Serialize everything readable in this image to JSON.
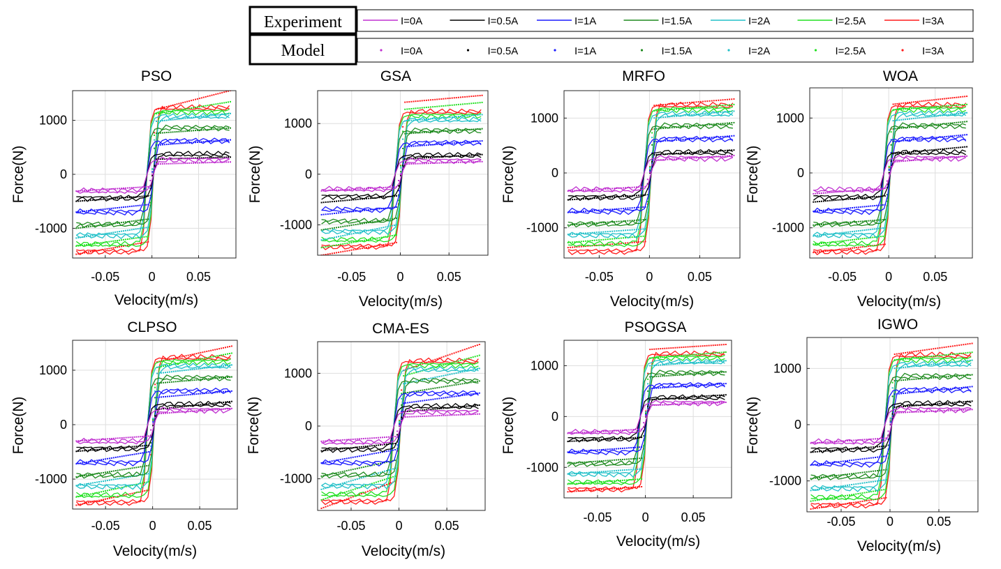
{
  "legend": {
    "experiment_label": "Experiment",
    "model_label": "Model",
    "entries": [
      "I=0A",
      "I=0.5A",
      "I=1A",
      "I=1.5A",
      "I=2A",
      "I=2.5A",
      "I=3A"
    ],
    "colors": [
      "#c030d0",
      "#000000",
      "#1a1aff",
      "#1f8a1f",
      "#22c0c8",
      "#22e022",
      "#ff1a1a"
    ]
  },
  "chart_data": [
    {
      "type": "line",
      "title": "PSO",
      "xlabel": "Velocity(m/s)",
      "ylabel": "Force(N)",
      "xlim": [
        -0.085,
        0.09
      ],
      "ylim": [
        -1550,
        1550
      ],
      "xticks": [
        -0.05,
        0,
        0.05
      ],
      "xtick_labels": [
        "-0.05",
        "0",
        "0.05"
      ],
      "yticks": [
        -1000,
        0,
        1000
      ],
      "ytick_labels": [
        "-1000",
        "0",
        "1000"
      ],
      "grid": true,
      "series_names": [
        "I=0A",
        "I=0.5A",
        "I=1A",
        "I=1.5A",
        "I=2A",
        "I=2.5A",
        "I=3A"
      ],
      "experiment_plateau_upper": [
        270,
        370,
        620,
        860,
        1070,
        1160,
        1230
      ],
      "experiment_plateau_lower": [
        -310,
        -440,
        -700,
        -930,
        -1130,
        -1300,
        -1430
      ],
      "model_upper_start": [
        190,
        280,
        540,
        760,
        980,
        1120,
        1200
      ],
      "model_upper_end": [
        230,
        320,
        640,
        860,
        1130,
        1350,
        1560
      ],
      "model_lower_start": [
        -310,
        -500,
        -700,
        -1000,
        -1180,
        -1330,
        -1480
      ],
      "model_lower_end": [
        -230,
        -400,
        -560,
        -830,
        -980,
        -1150,
        -1250
      ]
    },
    {
      "type": "line",
      "title": "GSA",
      "xlabel": "Velocity(m/s)",
      "ylabel": "Force(N)",
      "xlim": [
        -0.085,
        0.09
      ],
      "ylim": [
        -1600,
        1650
      ],
      "xticks": [
        -0.05,
        0,
        0.05
      ],
      "xtick_labels": [
        "-0.05",
        "0",
        "0.05"
      ],
      "yticks": [
        -1000,
        0,
        1000
      ],
      "ytick_labels": [
        "-1000",
        "0",
        "1000"
      ],
      "grid": true,
      "series_names": [
        "I=0A",
        "I=0.5A",
        "I=1A",
        "I=1.5A",
        "I=2A",
        "I=2.5A",
        "I=3A"
      ],
      "experiment_plateau_upper": [
        270,
        370,
        620,
        860,
        1070,
        1160,
        1230
      ],
      "experiment_plateau_lower": [
        -300,
        -440,
        -700,
        -930,
        -1130,
        -1300,
        -1430
      ],
      "model_upper_start": [
        200,
        300,
        540,
        800,
        1050,
        1280,
        1420
      ],
      "model_upper_end": [
        250,
        390,
        660,
        900,
        1180,
        1420,
        1560
      ],
      "model_lower_start": [
        -330,
        -560,
        -800,
        -1100,
        -1300,
        -1450,
        -1600
      ],
      "model_lower_end": [
        -250,
        -430,
        -650,
        -870,
        -1000,
        -1200,
        -1350
      ]
    },
    {
      "type": "line",
      "title": "MRFO",
      "xlabel": "Velocity(m/s)",
      "ylabel": "Force(N)",
      "xlim": [
        -0.085,
        0.09
      ],
      "ylim": [
        -1550,
        1500
      ],
      "xticks": [
        -0.05,
        0,
        0.05
      ],
      "xtick_labels": [
        "-0.05",
        "0",
        "0.05"
      ],
      "yticks": [
        -1000,
        0,
        1000
      ],
      "ytick_labels": [
        "-1000",
        "0",
        "1000"
      ],
      "grid": true,
      "series_names": [
        "I=0A",
        "I=0.5A",
        "I=1A",
        "I=1.5A",
        "I=2A",
        "I=2.5A",
        "I=3A"
      ],
      "experiment_plateau_upper": [
        270,
        370,
        620,
        860,
        1070,
        1160,
        1230
      ],
      "experiment_plateau_lower": [
        -310,
        -440,
        -700,
        -930,
        -1130,
        -1300,
        -1430
      ],
      "model_upper_start": [
        230,
        330,
        570,
        800,
        1000,
        1130,
        1230
      ],
      "model_upper_end": [
        320,
        420,
        680,
        920,
        1130,
        1250,
        1350
      ],
      "model_lower_start": [
        -330,
        -490,
        -720,
        -950,
        -1120,
        -1270,
        -1360
      ],
      "model_lower_end": [
        -250,
        -400,
        -620,
        -850,
        -1020,
        -1150,
        -1250
      ]
    },
    {
      "type": "line",
      "title": "WOA",
      "xlabel": "Velocity(m/s)",
      "ylabel": "Force(N)",
      "xlim": [
        -0.085,
        0.09
      ],
      "ylim": [
        -1550,
        1550
      ],
      "xticks": [
        -0.05,
        0,
        0.05
      ],
      "xtick_labels": [
        "-0.05",
        "0",
        "0.05"
      ],
      "yticks": [
        -1000,
        0,
        1000
      ],
      "ytick_labels": [
        "-1000",
        "0",
        "1000"
      ],
      "grid": true,
      "series_names": [
        "I=0A",
        "I=0.5A",
        "I=1A",
        "I=1.5A",
        "I=2A",
        "I=2.5A",
        "I=3A"
      ],
      "experiment_plateau_upper": [
        270,
        370,
        620,
        860,
        1070,
        1160,
        1230
      ],
      "experiment_plateau_lower": [
        -310,
        -440,
        -700,
        -930,
        -1130,
        -1300,
        -1430
      ],
      "model_upper_start": [
        200,
        350,
        570,
        800,
        950,
        1150,
        1250
      ],
      "model_upper_end": [
        310,
        480,
        700,
        940,
        1100,
        1250,
        1400
      ],
      "model_lower_start": [
        -380,
        -530,
        -700,
        -950,
        -1150,
        -1300,
        -1450
      ],
      "model_lower_end": [
        -280,
        -420,
        -580,
        -850,
        -1000,
        -1150,
        -1300
      ]
    },
    {
      "type": "line",
      "title": "CLPSO",
      "xlabel": "Velocity(m/s)",
      "ylabel": "Force(N)",
      "xlim": [
        -0.085,
        0.09
      ],
      "ylim": [
        -1550,
        1550
      ],
      "xticks": [
        -0.05,
        0,
        0.05
      ],
      "xtick_labels": [
        "-0.05",
        "0",
        "0.05"
      ],
      "yticks": [
        -1000,
        0,
        1000
      ],
      "ytick_labels": [
        "-1000",
        "0",
        "1000"
      ],
      "grid": true,
      "series_names": [
        "I=0A",
        "I=0.5A",
        "I=1A",
        "I=1.5A",
        "I=2A",
        "I=2.5A",
        "I=3A"
      ],
      "experiment_plateau_upper": [
        270,
        370,
        620,
        860,
        1070,
        1160,
        1230
      ],
      "experiment_plateau_lower": [
        -310,
        -440,
        -700,
        -930,
        -1130,
        -1300,
        -1430
      ],
      "model_upper_start": [
        200,
        280,
        500,
        760,
        940,
        1050,
        1150
      ],
      "model_upper_end": [
        300,
        430,
        620,
        880,
        1100,
        1320,
        1450
      ],
      "model_lower_start": [
        -300,
        -490,
        -720,
        -960,
        -1120,
        -1330,
        -1480
      ],
      "model_lower_end": [
        -210,
        -380,
        -500,
        -750,
        -900,
        -1050,
        -1200
      ]
    },
    {
      "type": "line",
      "title": "CMA-ES",
      "xlabel": "Velocity(m/s)",
      "ylabel": "Force(N)",
      "xlim": [
        -0.085,
        0.09
      ],
      "ylim": [
        -1600,
        1600
      ],
      "xticks": [
        -0.05,
        0,
        0.05
      ],
      "xtick_labels": [
        "-0.05",
        "0",
        "0.05"
      ],
      "yticks": [
        -1000,
        0,
        1000
      ],
      "ytick_labels": [
        "-1000",
        "0",
        "1000"
      ],
      "grid": true,
      "series_names": [
        "I=0A",
        "I=0.5A",
        "I=1A",
        "I=1.5A",
        "I=2A",
        "I=2.5A",
        "I=3A"
      ],
      "experiment_plateau_upper": [
        270,
        370,
        620,
        860,
        1070,
        1160,
        1230
      ],
      "experiment_plateau_lower": [
        -310,
        -440,
        -700,
        -930,
        -1130,
        -1300,
        -1430
      ],
      "model_upper_start": [
        170,
        270,
        430,
        620,
        800,
        950,
        1050
      ],
      "model_upper_end": [
        230,
        400,
        630,
        860,
        1100,
        1350,
        1560
      ],
      "model_lower_start": [
        -290,
        -470,
        -700,
        -950,
        -1200,
        -1400,
        -1560
      ],
      "model_lower_end": [
        -200,
        -330,
        -450,
        -650,
        -800,
        -950,
        -1050
      ]
    },
    {
      "type": "line",
      "title": "PSOGSA",
      "xlabel": "Velocity(m/s)",
      "ylabel": "Force(N)",
      "xlim": [
        -0.085,
        0.09
      ],
      "ylim": [
        -1600,
        1500
      ],
      "xticks": [
        -0.05,
        0,
        0.05
      ],
      "xtick_labels": [
        "-0.05",
        "0",
        "0.05"
      ],
      "yticks": [
        -1000,
        0,
        1000
      ],
      "ytick_labels": [
        "-1000",
        "0",
        "1000"
      ],
      "grid": true,
      "series_names": [
        "I=0A",
        "I=0.5A",
        "I=1A",
        "I=1.5A",
        "I=2A",
        "I=2.5A",
        "I=3A"
      ],
      "experiment_plateau_upper": [
        270,
        370,
        620,
        860,
        1070,
        1160,
        1230
      ],
      "experiment_plateau_lower": [
        -310,
        -440,
        -700,
        -930,
        -1130,
        -1300,
        -1430
      ],
      "model_upper_start": [
        220,
        330,
        550,
        780,
        1000,
        1150,
        1320
      ],
      "model_upper_end": [
        280,
        430,
        650,
        880,
        1100,
        1270,
        1420
      ],
      "model_lower_start": [
        -330,
        -490,
        -700,
        -920,
        -1130,
        -1330,
        -1480
      ],
      "model_lower_end": [
        -250,
        -410,
        -600,
        -820,
        -1030,
        -1230,
        -1380
      ]
    },
    {
      "type": "line",
      "title": "IGWO",
      "xlabel": "Velocity(m/s)",
      "ylabel": "Force(N)",
      "xlim": [
        -0.085,
        0.09
      ],
      "ylim": [
        -1550,
        1550
      ],
      "xticks": [
        -0.05,
        0,
        0.05
      ],
      "xtick_labels": [
        "-0.05",
        "0",
        "0.05"
      ],
      "yticks": [
        -1000,
        0,
        1000
      ],
      "ytick_labels": [
        "-1000",
        "0",
        "1000"
      ],
      "grid": true,
      "series_names": [
        "I=0A",
        "I=0.5A",
        "I=1A",
        "I=1.5A",
        "I=2A",
        "I=2.5A",
        "I=3A"
      ],
      "experiment_plateau_upper": [
        270,
        370,
        620,
        860,
        1070,
        1160,
        1230
      ],
      "experiment_plateau_lower": [
        -310,
        -440,
        -700,
        -930,
        -1130,
        -1300,
        -1430
      ],
      "model_upper_start": [
        210,
        310,
        540,
        780,
        1000,
        1150,
        1250
      ],
      "model_upper_end": [
        270,
        420,
        680,
        890,
        1150,
        1290,
        1450
      ],
      "model_lower_start": [
        -330,
        -490,
        -720,
        -960,
        -1170,
        -1360,
        -1500
      ],
      "model_lower_end": [
        -240,
        -380,
        -560,
        -800,
        -980,
        -1150,
        -1300
      ]
    }
  ]
}
